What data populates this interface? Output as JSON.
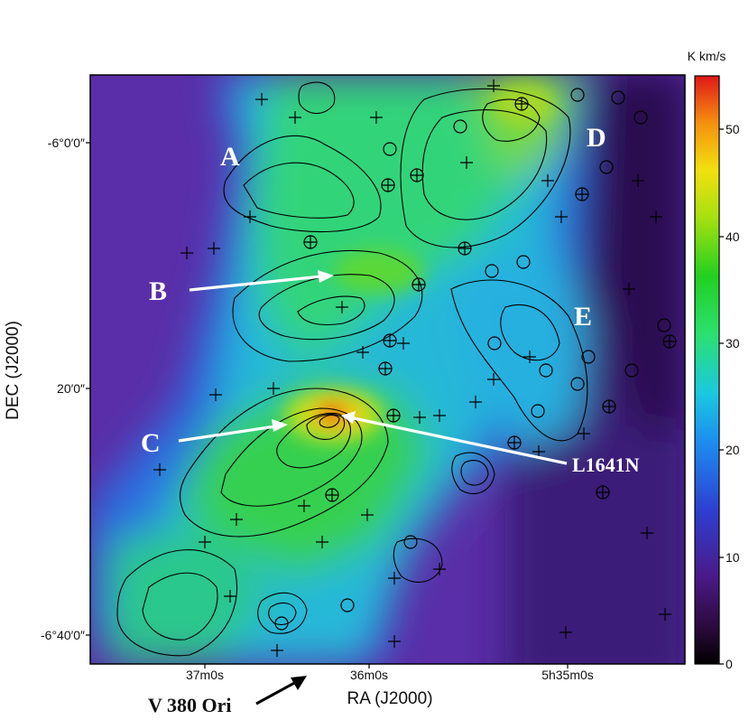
{
  "chart_data": {
    "type": "heatmap",
    "title": "",
    "xlabel": "RA (J2000)",
    "ylabel": "DEC (J2000)",
    "x_ticks": [
      "37m0s",
      "36m0s",
      "5h35m0s"
    ],
    "y_ticks": [
      "-6°0′0″",
      "20′0″",
      "-6°40′0″"
    ],
    "colorbar": {
      "unit": "K km/s",
      "range": [
        0,
        55
      ],
      "ticks": [
        "0",
        "10",
        "20",
        "30",
        "40",
        "50"
      ]
    },
    "annotations": {
      "A": "A",
      "B": "B",
      "C": "C",
      "D": "D",
      "E": "E",
      "L1641N": "L1641N",
      "V380": "V 380 Ori"
    },
    "overlays": [
      "contours",
      "plus markers",
      "circle markers",
      "circle-plus markers"
    ]
  }
}
